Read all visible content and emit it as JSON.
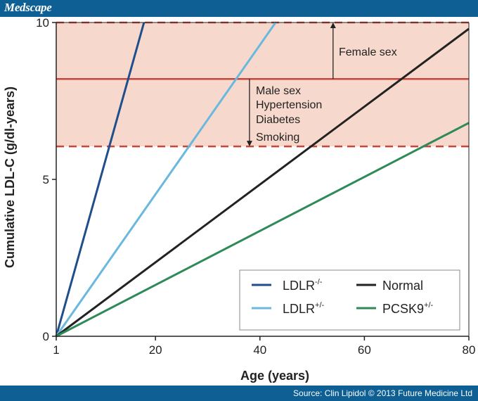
{
  "header": {
    "brand": "Medscape"
  },
  "footer": {
    "source": "Source: Clin Lipidol © 2013 Future Medicine Ltd"
  },
  "chart_data": {
    "type": "line",
    "xlabel": "Age (years)",
    "ylabel": "Cumulative LDL-C (g/dl-years)",
    "xlim": [
      1,
      80
    ],
    "ylim": [
      0,
      10
    ],
    "xticks": [
      1,
      20,
      40,
      60,
      80
    ],
    "xtick_labels": [
      "1",
      "20",
      "40",
      "60",
      "80"
    ],
    "yticks": [
      0,
      5,
      10
    ],
    "ytick_labels": [
      "0",
      "5",
      "10"
    ],
    "grid": false,
    "legend_position": "bottom-right",
    "series": [
      {
        "name": "LDLR",
        "superscript": "-/-",
        "color": "#1f4e8c",
        "x": [
          1,
          17.8
        ],
        "y": [
          0,
          10
        ]
      },
      {
        "name": "LDLR",
        "superscript": "+/-",
        "color": "#6ab8de",
        "x": [
          1,
          43
        ],
        "y": [
          0,
          10
        ]
      },
      {
        "name": "Normal",
        "superscript": "",
        "color": "#222222",
        "x": [
          1,
          80
        ],
        "y": [
          0,
          9.8
        ]
      },
      {
        "name": "PCSK9",
        "superscript": "+/-",
        "color": "#2e8a57",
        "x": [
          1,
          80
        ],
        "y": [
          0,
          6.8
        ]
      }
    ],
    "risk_band": {
      "y_low": 6.05,
      "y_high": 10,
      "color": "#f6d9cc"
    },
    "threshold_lines": [
      {
        "y": 10,
        "style": "dashed",
        "color": "#c8453a"
      },
      {
        "y": 8.2,
        "style": "solid",
        "color": "#c8453a"
      },
      {
        "y": 6.05,
        "style": "dashed",
        "color": "#c8453a"
      }
    ],
    "annotations": [
      {
        "text": "Female sex",
        "arrow_from": 8.2,
        "arrow_to": 10,
        "arrow_x": 54
      },
      {
        "text_lines": [
          "Male sex",
          "Hypertension",
          "Diabetes",
          "Smoking"
        ],
        "arrow_from": 8.2,
        "arrow_to": 6.05,
        "arrow_x": 38
      }
    ]
  }
}
